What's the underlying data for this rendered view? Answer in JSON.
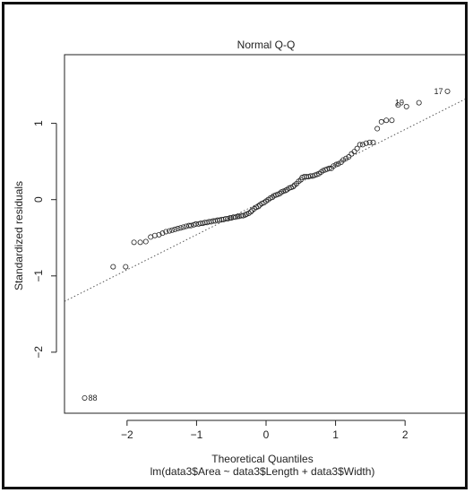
{
  "chart_data": {
    "type": "scatter",
    "title": "Normal Q-Q",
    "xlabel": "Theoretical Quantiles",
    "xlabel_sub": "lm(data3$Area ~ data3$Length + data3$Width)",
    "ylabel": "Standardized residuals",
    "xlim": [
      -2.9,
      2.9
    ],
    "ylim": [
      -2.8,
      1.9
    ],
    "xticks": [
      -2,
      -1,
      0,
      1,
      2
    ],
    "yticks": [
      -2,
      -1,
      0,
      1
    ],
    "grid": false,
    "reference_line": {
      "slope": 0.46,
      "intercept": 0.0,
      "style": "dotted"
    },
    "annotations": [
      {
        "label": "17",
        "x": 2.61,
        "y": 1.42
      },
      {
        "label": "19",
        "x": 2.05,
        "y": 1.27
      },
      {
        "label": "88",
        "x": -2.61,
        "y": -2.6
      }
    ],
    "points": [
      [
        -2.61,
        -2.6
      ],
      [
        -2.2,
        -0.88
      ],
      [
        -2.02,
        -0.88
      ],
      [
        -1.9,
        -0.56
      ],
      [
        -1.81,
        -0.56
      ],
      [
        -1.73,
        -0.55
      ],
      [
        -1.66,
        -0.49
      ],
      [
        -1.6,
        -0.47
      ],
      [
        -1.54,
        -0.46
      ],
      [
        -1.49,
        -0.44
      ],
      [
        -1.44,
        -0.42
      ],
      [
        -1.39,
        -0.41
      ],
      [
        -1.35,
        -0.4
      ],
      [
        -1.31,
        -0.39
      ],
      [
        -1.27,
        -0.38
      ],
      [
        -1.23,
        -0.37
      ],
      [
        -1.19,
        -0.36
      ],
      [
        -1.15,
        -0.35
      ],
      [
        -1.11,
        -0.34
      ],
      [
        -1.08,
        -0.34
      ],
      [
        -1.04,
        -0.33
      ],
      [
        -1.01,
        -0.32
      ],
      [
        -0.97,
        -0.32
      ],
      [
        -0.94,
        -0.31
      ],
      [
        -0.91,
        -0.31
      ],
      [
        -0.88,
        -0.3
      ],
      [
        -0.85,
        -0.3
      ],
      [
        -0.82,
        -0.29
      ],
      [
        -0.79,
        -0.29
      ],
      [
        -0.76,
        -0.28
      ],
      [
        -0.73,
        -0.28
      ],
      [
        -0.7,
        -0.27
      ],
      [
        -0.67,
        -0.27
      ],
      [
        -0.64,
        -0.26
      ],
      [
        -0.61,
        -0.26
      ],
      [
        -0.58,
        -0.25
      ],
      [
        -0.55,
        -0.25
      ],
      [
        -0.52,
        -0.24
      ],
      [
        -0.5,
        -0.24
      ],
      [
        -0.47,
        -0.23
      ],
      [
        -0.44,
        -0.23
      ],
      [
        -0.41,
        -0.22
      ],
      [
        -0.39,
        -0.22
      ],
      [
        -0.36,
        -0.21
      ],
      [
        -0.33,
        -0.21
      ],
      [
        -0.3,
        -0.2
      ],
      [
        -0.28,
        -0.19
      ],
      [
        -0.25,
        -0.18
      ],
      [
        -0.22,
        -0.16
      ],
      [
        -0.2,
        -0.14
      ],
      [
        -0.17,
        -0.12
      ],
      [
        -0.14,
        -0.1
      ],
      [
        -0.11,
        -0.09
      ],
      [
        -0.09,
        -0.07
      ],
      [
        -0.06,
        -0.05
      ],
      [
        -0.03,
        -0.04
      ],
      [
        0.0,
        -0.02
      ],
      [
        0.03,
        0.0
      ],
      [
        0.06,
        0.02
      ],
      [
        0.09,
        0.03
      ],
      [
        0.11,
        0.05
      ],
      [
        0.14,
        0.06
      ],
      [
        0.17,
        0.07
      ],
      [
        0.2,
        0.08
      ],
      [
        0.22,
        0.1
      ],
      [
        0.25,
        0.11
      ],
      [
        0.28,
        0.12
      ],
      [
        0.3,
        0.13
      ],
      [
        0.33,
        0.15
      ],
      [
        0.36,
        0.16
      ],
      [
        0.39,
        0.17
      ],
      [
        0.41,
        0.19
      ],
      [
        0.44,
        0.21
      ],
      [
        0.47,
        0.24
      ],
      [
        0.5,
        0.26
      ],
      [
        0.52,
        0.29
      ],
      [
        0.55,
        0.3
      ],
      [
        0.58,
        0.3
      ],
      [
        0.61,
        0.3
      ],
      [
        0.64,
        0.31
      ],
      [
        0.67,
        0.31
      ],
      [
        0.7,
        0.32
      ],
      [
        0.73,
        0.33
      ],
      [
        0.76,
        0.34
      ],
      [
        0.79,
        0.36
      ],
      [
        0.82,
        0.38
      ],
      [
        0.85,
        0.39
      ],
      [
        0.88,
        0.4
      ],
      [
        0.91,
        0.41
      ],
      [
        0.94,
        0.41
      ],
      [
        0.97,
        0.44
      ],
      [
        1.01,
        0.46
      ],
      [
        1.04,
        0.47
      ],
      [
        1.08,
        0.49
      ],
      [
        1.11,
        0.52
      ],
      [
        1.15,
        0.54
      ],
      [
        1.19,
        0.56
      ],
      [
        1.23,
        0.6
      ],
      [
        1.27,
        0.63
      ],
      [
        1.31,
        0.67
      ],
      [
        1.35,
        0.72
      ],
      [
        1.39,
        0.72
      ],
      [
        1.44,
        0.74
      ],
      [
        1.49,
        0.75
      ],
      [
        1.54,
        0.75
      ],
      [
        1.6,
        0.93
      ],
      [
        1.66,
        1.02
      ],
      [
        1.73,
        1.04
      ],
      [
        1.81,
        1.04
      ],
      [
        1.9,
        1.24
      ],
      [
        2.02,
        1.22
      ],
      [
        2.2,
        1.27
      ],
      [
        2.61,
        1.42
      ]
    ]
  }
}
